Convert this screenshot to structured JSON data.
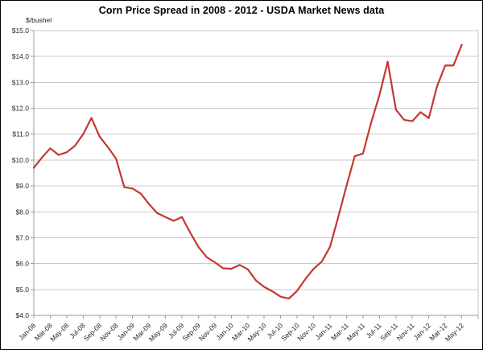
{
  "chart_data": {
    "type": "line",
    "title": "Corn Price Spread in 2008 - 2012 - USDA Market News data",
    "y_unit_label": "$/bushel",
    "xlabel": "",
    "ylabel": "$/bushel",
    "ylim": [
      4.0,
      15.0
    ],
    "y_tick_step": 1.0,
    "y_tick_labels": [
      "$15.0",
      "$14.0",
      "$13.0",
      "$12.0",
      "$11.0",
      "$10.0",
      "$9.0",
      "$8.0",
      "$7.0",
      "$6.0",
      "$5.0",
      "$4.0"
    ],
    "x_tick_labels": [
      "Jan-08",
      "Mar-08",
      "May-08",
      "Jul-08",
      "Sep-08",
      "Nov-08",
      "Jan-09",
      "Mar-09",
      "May-09",
      "Jul-09",
      "Sep-09",
      "Nov-09",
      "Jan-10",
      "Mar-10",
      "May-10",
      "Jul-10",
      "Sep-10",
      "Nov-10",
      "Jan-11",
      "Mar-11",
      "May-11",
      "Jul-11",
      "Sep-11",
      "Nov-11",
      "Jan-12",
      "Mar-12",
      "May-12"
    ],
    "x_start": "Jan-08",
    "x_end": "May-12",
    "x_frequency": "monthly",
    "grid": "horizontal",
    "legend": "none",
    "series": [
      {
        "name": "corn-price-spread",
        "values": [
          9.7,
          10.1,
          10.45,
          10.2,
          10.3,
          10.55,
          11.0,
          11.63,
          10.9,
          10.5,
          10.05,
          8.95,
          8.9,
          8.7,
          8.3,
          7.95,
          7.8,
          7.65,
          7.8,
          7.2,
          6.65,
          6.25,
          6.05,
          5.82,
          5.8,
          5.95,
          5.78,
          5.35,
          5.1,
          4.93,
          4.72,
          4.65,
          4.95,
          5.4,
          5.8,
          6.08,
          6.65,
          7.8,
          9.0,
          10.15,
          10.25,
          11.45,
          12.5,
          13.8,
          11.95,
          11.55,
          11.5,
          11.85,
          11.62,
          12.85,
          13.65,
          13.65,
          14.45
        ]
      }
    ],
    "colors": {
      "line": "#c23931",
      "grid": "#c9c9c9",
      "axis": "#9b9b9b",
      "tick_text": "#262626",
      "border": "#000000"
    }
  }
}
